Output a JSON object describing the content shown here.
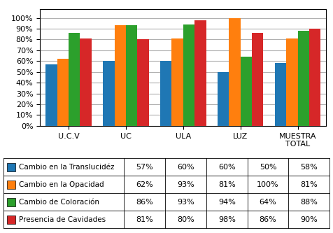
{
  "chart_data": {
    "type": "bar",
    "categories": [
      "U.C.V",
      "UC",
      "ULA",
      "LUZ",
      "MUESTRA\nTOTAL"
    ],
    "series": [
      {
        "name": "Cambio en la Translucidéz",
        "values": [
          0.57,
          0.6,
          0.6,
          0.5,
          0.58
        ],
        "value_labels": [
          "57%",
          "60%",
          "60%",
          "50%",
          "58%"
        ]
      },
      {
        "name": "Cambio en la Opacidad",
        "values": [
          0.62,
          0.93,
          0.81,
          1.0,
          0.81
        ],
        "value_labels": [
          "62%",
          "93%",
          "81%",
          "100%",
          "81%"
        ]
      },
      {
        "name": "Cambio de Coloración",
        "values": [
          0.86,
          0.93,
          0.94,
          0.64,
          0.88
        ],
        "value_labels": [
          "86%",
          "93%",
          "94%",
          "64%",
          "88%"
        ]
      },
      {
        "name": "Presencia de Cavidades",
        "values": [
          0.81,
          0.8,
          0.98,
          0.86,
          0.9
        ],
        "value_labels": [
          "81%",
          "80%",
          "98%",
          "86%",
          "90%"
        ]
      }
    ],
    "ylim": [
      0,
      1.08
    ],
    "yticks": [
      {
        "value": 0.0,
        "label": "0%"
      },
      {
        "value": 0.1,
        "label": "10%"
      },
      {
        "value": 0.2,
        "label": "20%"
      },
      {
        "value": 0.3,
        "label": "30%"
      },
      {
        "value": 0.4,
        "label": "40%"
      },
      {
        "value": 0.5,
        "label": "50%"
      },
      {
        "value": 0.6,
        "label": "60%"
      },
      {
        "value": 0.7,
        "label": "70%"
      },
      {
        "value": 0.8,
        "label": "80%"
      },
      {
        "value": 0.9,
        "label": "90%"
      },
      {
        "value": 1.0,
        "label": "100%"
      }
    ],
    "grid": true
  }
}
